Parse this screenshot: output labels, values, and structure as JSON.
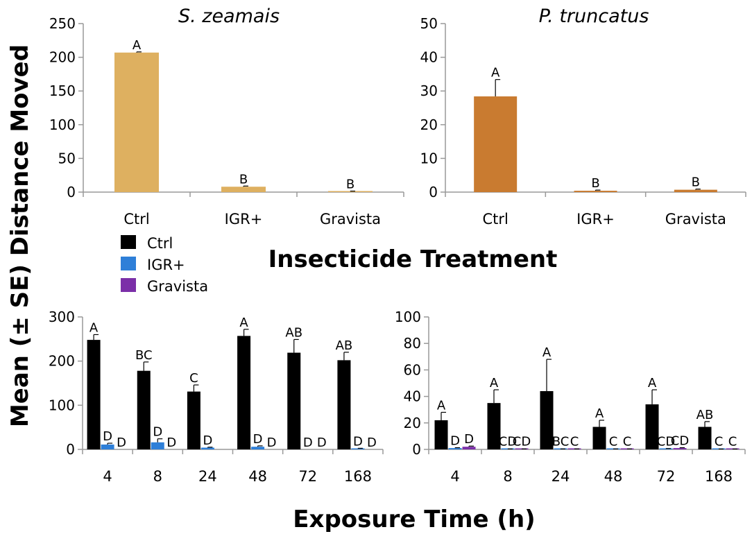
{
  "figure": {
    "ylabel": "Mean (± SE) Distance Moved",
    "top_xlabel": "Insecticide Treatment",
    "bottom_xlabel": "Exposure Time (h)",
    "legend": [
      {
        "label": "Ctrl",
        "color": "#000000"
      },
      {
        "label": "IGR+",
        "color": "#2e7fd8"
      },
      {
        "label": "Gravista",
        "color": "#7b2fa8"
      }
    ]
  },
  "chart_data": [
    {
      "type": "bar",
      "title": "S. zeamais",
      "categories": [
        "Ctrl",
        "IGR+",
        "Gravista"
      ],
      "values": [
        207,
        8,
        1
      ],
      "errors": [
        1,
        1,
        0.5
      ],
      "letters": [
        "A",
        "B",
        "B"
      ],
      "ylim": [
        0,
        250
      ],
      "yticks": [
        0,
        50,
        100,
        150,
        200,
        250
      ],
      "color": "#deb060",
      "xlabel": "Insecticide Treatment",
      "ylabel": "Mean (± SE) Distance Moved"
    },
    {
      "type": "bar",
      "title": "P. truncatus",
      "categories": [
        "Ctrl",
        "IGR+",
        "Gravista"
      ],
      "values": [
        28.4,
        0.4,
        0.7
      ],
      "errors": [
        5.0,
        0.2,
        0.2
      ],
      "letters": [
        "A",
        "B",
        "B"
      ],
      "ylim": [
        0,
        50
      ],
      "yticks": [
        0,
        10,
        20,
        30,
        40,
        50
      ],
      "color": "#c97b30",
      "xlabel": "Insecticide Treatment",
      "ylabel": "Mean (± SE) Distance Moved"
    },
    {
      "type": "bar",
      "title": "",
      "categories": [
        "4",
        "8",
        "24",
        "48",
        "72",
        "168"
      ],
      "ylim": [
        0,
        300
      ],
      "yticks": [
        0,
        100,
        200,
        300
      ],
      "xlabel": "Exposure Time (h)",
      "ylabel": "Mean (± SE) Distance Moved",
      "series": [
        {
          "name": "Ctrl",
          "color": "#000000",
          "values": [
            248,
            178,
            131,
            257,
            219,
            202
          ],
          "errors": [
            12,
            20,
            15,
            15,
            30,
            18
          ],
          "letters": [
            "A",
            "BC",
            "C",
            "A",
            "AB",
            "AB"
          ]
        },
        {
          "name": "IGR+",
          "color": "#2e7fd8",
          "values": [
            11,
            16,
            4,
            6,
            0,
            2
          ],
          "errors": [
            3,
            8,
            1,
            2,
            0,
            0.5
          ],
          "letters": [
            "D",
            "D",
            "D",
            "D",
            "D",
            "D"
          ]
        },
        {
          "name": "Gravista",
          "color": "#7b2fa8",
          "values": [
            0,
            0,
            0,
            0,
            0,
            0
          ],
          "errors": [
            0,
            0,
            0,
            0,
            0,
            0
          ],
          "letters": [
            "D",
            "D",
            "",
            "D",
            "D",
            "D"
          ]
        }
      ]
    },
    {
      "type": "bar",
      "title": "",
      "categories": [
        "4",
        "8",
        "24",
        "48",
        "72",
        "168"
      ],
      "ylim": [
        0,
        100
      ],
      "yticks": [
        0,
        20,
        40,
        60,
        80,
        100
      ],
      "xlabel": "Exposure Time (h)",
      "ylabel": "Mean (± SE) Distance Moved",
      "series": [
        {
          "name": "Ctrl",
          "color": "#000000",
          "values": [
            22,
            35,
            44,
            17,
            34,
            17
          ],
          "errors": [
            6,
            10,
            24,
            5,
            11,
            4
          ],
          "letters": [
            "A",
            "A",
            "A",
            "A",
            "A",
            "AB"
          ]
        },
        {
          "name": "IGR+",
          "color": "#2e7fd8",
          "values": [
            1,
            0.3,
            0.3,
            0.3,
            0.5,
            0.2
          ],
          "errors": [
            0.3,
            0.1,
            0.1,
            0.1,
            0.2,
            0.1
          ],
          "letters": [
            "D",
            "CD",
            "BC",
            "C",
            "CD",
            "C"
          ]
        },
        {
          "name": "Gravista",
          "color": "#7b2fa8",
          "values": [
            2,
            0.3,
            0.3,
            0.3,
            1,
            0.2
          ],
          "errors": [
            0.5,
            0.1,
            0.1,
            0.1,
            0.3,
            0.1
          ],
          "letters": [
            "D",
            "CD",
            "C",
            "C",
            "CD",
            "C"
          ]
        }
      ]
    }
  ]
}
